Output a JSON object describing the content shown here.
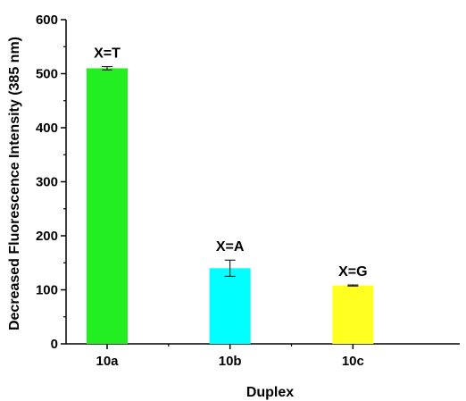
{
  "chart_data": {
    "type": "bar",
    "xlabel": "Duplex",
    "ylabel": "Decreased Fluorescence Intensity (385 nm)",
    "ylim": [
      0,
      600
    ],
    "yticks": [
      "0",
      "100",
      "200",
      "300",
      "400",
      "500",
      "600"
    ],
    "grid": false,
    "categories": [
      "10a",
      "10b",
      "10c"
    ],
    "values": [
      510,
      140,
      108
    ],
    "errors": [
      3,
      15,
      1
    ],
    "annotations": [
      "X=T",
      "X=A",
      "X=G"
    ],
    "colors": [
      "#22ee22",
      "#00ffff",
      "#ffff22"
    ]
  }
}
